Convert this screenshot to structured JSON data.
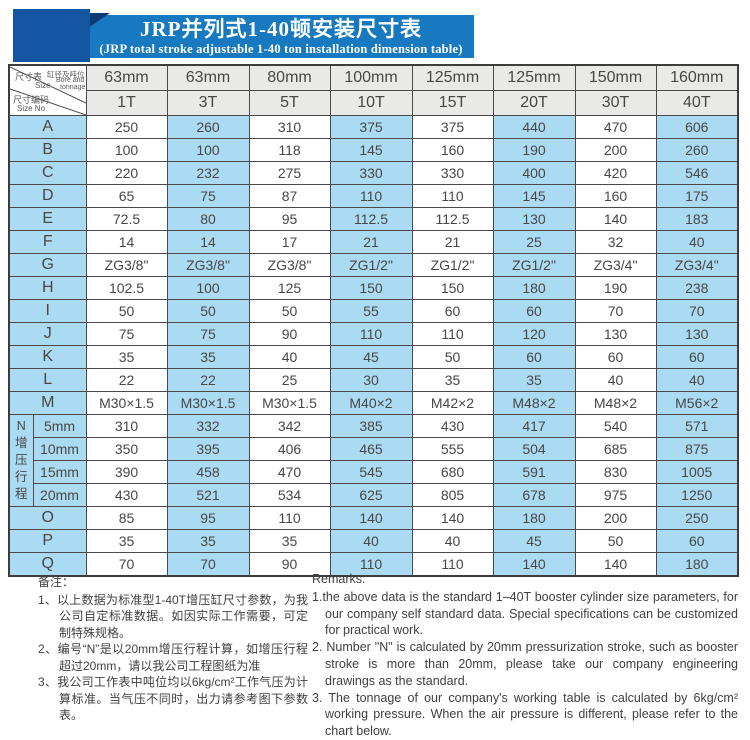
{
  "title": {
    "zh": "JRP并列式1-40顿安装尺寸表",
    "en": "(JRP total stroke adjustable 1-40 ton installation dimension table)"
  },
  "corner": {
    "size_zh": "尺寸表",
    "size_en": "Size",
    "bore_zh": "缸径及吨位",
    "bore_en1": "Bore and",
    "bore_en2": "tonnage",
    "no_zh": "尺寸编码",
    "no_en": "Size No."
  },
  "table": {
    "bores": [
      "63mm",
      "63mm",
      "80mm",
      "100mm",
      "125mm",
      "125mm",
      "150mm",
      "160mm"
    ],
    "tonnages": [
      "1T",
      "3T",
      "5T",
      "10T",
      "15T",
      "20T",
      "30T",
      "40T"
    ],
    "rows_top": [
      {
        "label": "A",
        "values": [
          "250",
          "260",
          "310",
          "375",
          "375",
          "440",
          "470",
          "606"
        ]
      },
      {
        "label": "B",
        "values": [
          "100",
          "100",
          "118",
          "145",
          "160",
          "190",
          "200",
          "260"
        ]
      },
      {
        "label": "C",
        "values": [
          "220",
          "232",
          "275",
          "330",
          "330",
          "400",
          "420",
          "546"
        ]
      },
      {
        "label": "D",
        "values": [
          "65",
          "75",
          "87",
          "110",
          "110",
          "145",
          "160",
          "175"
        ]
      },
      {
        "label": "E",
        "values": [
          "72.5",
          "80",
          "95",
          "112.5",
          "112.5",
          "130",
          "140",
          "183"
        ]
      },
      {
        "label": "F",
        "values": [
          "14",
          "14",
          "17",
          "21",
          "21",
          "25",
          "32",
          "40"
        ]
      },
      {
        "label": "G",
        "values": [
          "ZG3/8\"",
          "ZG3/8\"",
          "ZG3/8\"",
          "ZG1/2\"",
          "ZG1/2\"",
          "ZG1/2\"",
          "ZG3/4\"",
          "ZG3/4\""
        ]
      },
      {
        "label": "H",
        "values": [
          "102.5",
          "100",
          "125",
          "150",
          "150",
          "180",
          "190",
          "238"
        ]
      },
      {
        "label": "I",
        "values": [
          "50",
          "50",
          "50",
          "55",
          "60",
          "60",
          "70",
          "70"
        ]
      },
      {
        "label": "J",
        "values": [
          "75",
          "75",
          "90",
          "110",
          "110",
          "120",
          "130",
          "130"
        ]
      },
      {
        "label": "K",
        "values": [
          "35",
          "35",
          "40",
          "45",
          "50",
          "60",
          "60",
          "60"
        ]
      },
      {
        "label": "L",
        "values": [
          "22",
          "22",
          "25",
          "30",
          "35",
          "35",
          "40",
          "40"
        ]
      },
      {
        "label": "M",
        "values": [
          "M30×1.5",
          "M30×1.5",
          "M30×1.5",
          "M40×2",
          "M42×2",
          "M48×2",
          "M48×2",
          "M56×2"
        ]
      }
    ],
    "n_group": {
      "letter": "N",
      "vertical_label": "增压行程",
      "sub_rows": [
        {
          "label": "5mm",
          "values": [
            "310",
            "332",
            "342",
            "385",
            "430",
            "417",
            "540",
            "571"
          ]
        },
        {
          "label": "10mm",
          "values": [
            "350",
            "395",
            "406",
            "465",
            "555",
            "504",
            "685",
            "875"
          ]
        },
        {
          "label": "15mm",
          "values": [
            "390",
            "458",
            "470",
            "545",
            "680",
            "591",
            "830",
            "1005"
          ]
        },
        {
          "label": "20mm",
          "values": [
            "430",
            "521",
            "534",
            "625",
            "805",
            "678",
            "975",
            "1250"
          ]
        }
      ]
    },
    "rows_bottom": [
      {
        "label": "O",
        "values": [
          "85",
          "95",
          "110",
          "140",
          "140",
          "180",
          "200",
          "250"
        ]
      },
      {
        "label": "P",
        "values": [
          "35",
          "35",
          "35",
          "40",
          "40",
          "45",
          "50",
          "60"
        ]
      },
      {
        "label": "Q",
        "values": [
          "70",
          "70",
          "90",
          "110",
          "110",
          "140",
          "140",
          "180"
        ]
      }
    ]
  },
  "notes_zh": {
    "heading": "备注：",
    "markers": [
      "1、",
      "2、",
      "3、"
    ],
    "items": [
      "以上数据为标准型1-40T增压缸尺寸参数，为我公司自定标准数据。如因实际工作需要，可定制特殊规格。",
      "编号“N”是以20mm增压行程计算，如增压行程超过20mm，请以我公司工程图纸为准",
      "我公司工作表中吨位均以6kg/cm²工作气压为计算标准。当气压不同时，出力请参考图下参数表。"
    ]
  },
  "notes_en": {
    "heading": "Remarks:",
    "markers": [
      "1.",
      "2. ",
      "3. "
    ],
    "items": [
      "the above data is the standard 1–40T booster cylinder size parameters, for our company self standard data. Special specifications can be customized for practical work.",
      "Number \"N\" is calculated by 20mm pressurization stroke, such as booster stroke is more than 20mm, please take our company engineering drawings as the standard.",
      "The tonnage of our company's working table is calculated by 6kg/cm² working pressure. When the air pressure is different, please refer to the chart below."
    ]
  },
  "colors": {
    "banner_blue": "#1779c0",
    "ribbon_square_blue": "#1456a2",
    "ribbon_fold_navy": "#0c3a74",
    "cell_blue": "#abdbf2",
    "header_gray": "#e9e9e7",
    "border_gray": "#4a4a4a"
  }
}
